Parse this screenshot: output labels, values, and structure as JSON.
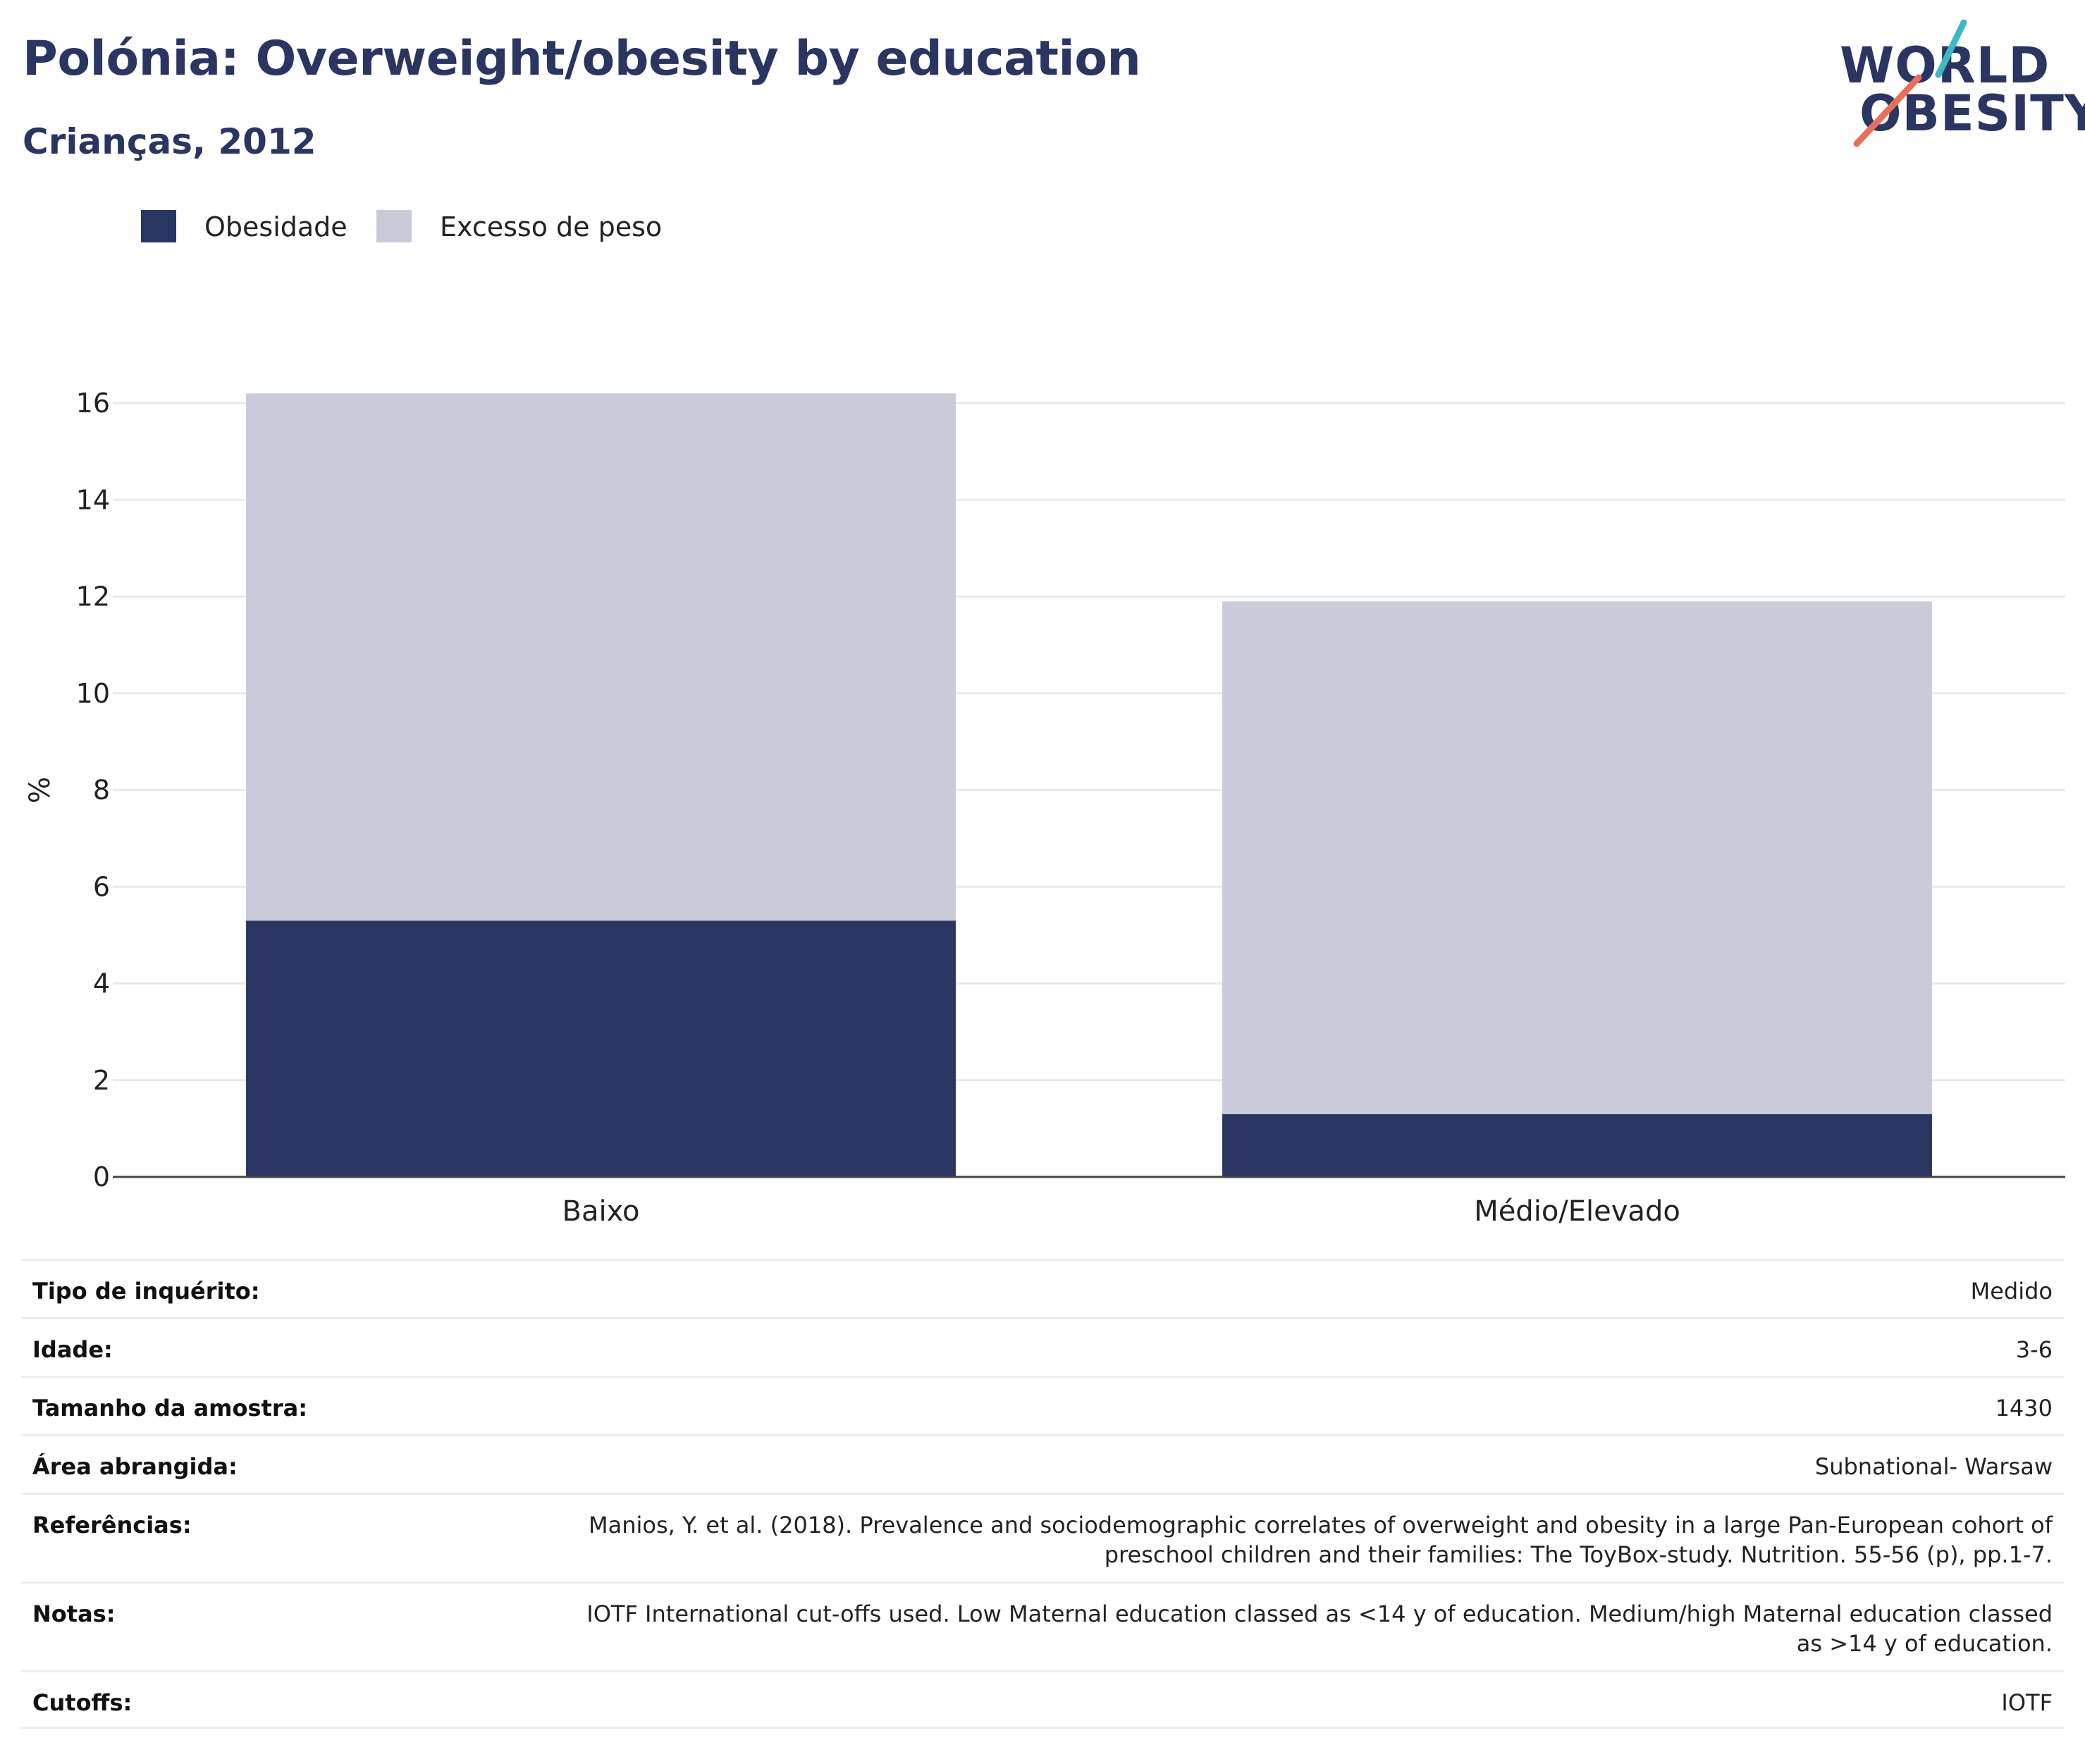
{
  "header": {
    "title": "Polónia: Overweight/obesity by education",
    "subtitle": "Crianças, 2012"
  },
  "logo": {
    "line1": "WORLD",
    "line2": "OBESITY",
    "accent_teal": "#3fb8c6",
    "accent_coral": "#e8705a"
  },
  "colors": {
    "obesity": "#2b3561",
    "overweight": "#c9ccd8",
    "text": "#2b3561"
  },
  "legend": [
    {
      "label": "Obesidade",
      "color": "#2b3561"
    },
    {
      "label": "Excesso de peso",
      "color": "#c9ccd8"
    }
  ],
  "chart_data": {
    "type": "bar",
    "stacked": true,
    "categories": [
      "Baixo",
      "Médio/Elevado"
    ],
    "series": [
      {
        "name": "Obesidade",
        "values": [
          5.3,
          1.3
        ]
      },
      {
        "name": "Excesso de peso",
        "values": [
          10.9,
          10.6
        ]
      }
    ],
    "ylabel": "%",
    "xlabel": "",
    "ylim": [
      0,
      16
    ],
    "yticks": [
      0,
      2,
      4,
      6,
      8,
      10,
      12,
      14,
      16
    ],
    "grid": true,
    "legend_position": "top-left"
  },
  "meta": [
    {
      "key": "Tipo de inquérito:",
      "value": "Medido"
    },
    {
      "key": "Idade:",
      "value": "3-6"
    },
    {
      "key": "Tamanho da amostra:",
      "value": "1430"
    },
    {
      "key": "Área abrangida:",
      "value": "Subnational- Warsaw"
    },
    {
      "key": "Referências:",
      "value": "Manios, Y. et al. (2018). Prevalence and sociodemographic correlates of overweight and obesity in a large Pan-European cohort of preschool children and their families: The ToyBox-study. Nutrition. 55-56 (p), pp.1-7."
    },
    {
      "key": "Notas:",
      "value": "IOTF International cut-offs used. Low Maternal education classed as <14 y of education. Medium/high Maternal education classed as >14 y of education."
    },
    {
      "key": "Cutoffs:",
      "value": "IOTF"
    }
  ]
}
